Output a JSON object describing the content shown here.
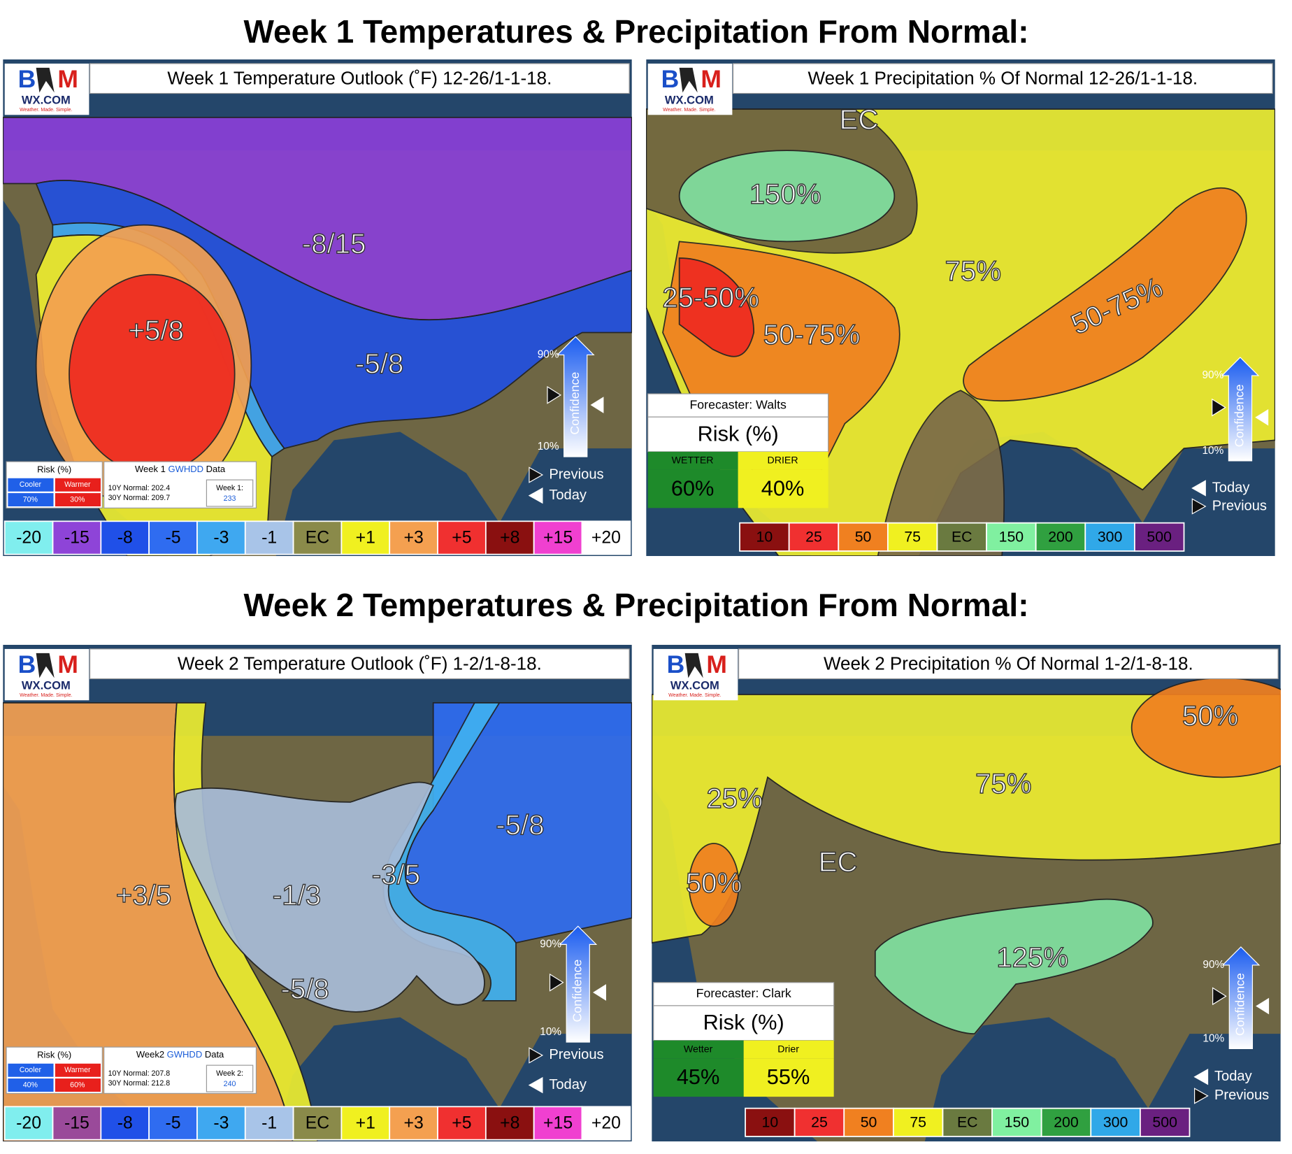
{
  "headings": [
    "Week 1 Temperatures & Precipitation From Normal:",
    "Week 2 Temperatures & Precipitation From Normal:"
  ],
  "panels": [
    {
      "kind": "temp",
      "title": "Week 1 Temperature Outlook (˚F) 12-26/1-1-18.",
      "logo": {
        "left": "B",
        "right": "M",
        "site": "WX.COM",
        "tagline": "Weather. Made. Simple."
      },
      "labels": [
        "-8/15",
        "+5/8",
        "-5/8"
      ],
      "risk": {
        "title": "Risk (%)",
        "cooler": "Cooler",
        "warmer": "Warmer",
        "cooler_value": "70%",
        "warmer_value": "30%"
      },
      "gwhdd": {
        "prefix": "Week 1 ",
        "key": "GWHDD",
        "suffix": " Data",
        "normal_10y": "10Y Normal: 202.4",
        "normal_30y": "30Y Normal: 209.7",
        "week_label": "Week 1:",
        "week_value": "233"
      },
      "confidence": {
        "high": "90%",
        "low": "10%",
        "label": "Confidence"
      },
      "nav": {
        "previous": "Previous",
        "today": "Today"
      },
      "legend": [
        {
          "label": "-20",
          "color": "#80eeee"
        },
        {
          "label": "-15",
          "color": "#8e44d8"
        },
        {
          "label": "-8",
          "color": "#2050e8"
        },
        {
          "label": "-5",
          "color": "#2f6cf0"
        },
        {
          "label": "-3",
          "color": "#3fa8f0"
        },
        {
          "label": "-1",
          "color": "#a8c4e8"
        },
        {
          "label": "EC",
          "color": "#8a8a4a"
        },
        {
          "label": "+1",
          "color": "#f0f020"
        },
        {
          "label": "+3",
          "color": "#f4a050"
        },
        {
          "label": "+5",
          "color": "#f03030"
        },
        {
          "label": "+8",
          "color": "#8a1010"
        },
        {
          "label": "+15",
          "color": "#f040d0"
        },
        {
          "label": "+20",
          "color": "#ffffff"
        }
      ]
    },
    {
      "kind": "precip",
      "title": "Week 1 Precipitation % Of Normal 12-26/1-1-18.",
      "logo": {
        "left": "B",
        "right": "M",
        "site": "WX.COM",
        "tagline": "Weather. Made. Simple."
      },
      "labels": [
        "EC",
        "150%",
        "25-50%",
        "50-75%",
        "75%",
        "50-75%"
      ],
      "risk": {
        "forecaster": "Forecaster: Walts",
        "title": "Risk (%)",
        "wetter": "WETTER",
        "drier": "DRIER",
        "wetter_value": "60%",
        "drier_value": "40%"
      },
      "confidence": {
        "high": "90%",
        "low": "10%",
        "label": "Confidence"
      },
      "nav": {
        "today": "Today",
        "previous": "Previous"
      },
      "legend": [
        {
          "label": "10",
          "color": "#8a1010"
        },
        {
          "label": "25",
          "color": "#f03030"
        },
        {
          "label": "50",
          "color": "#f08020"
        },
        {
          "label": "75",
          "color": "#f0f020"
        },
        {
          "label": "EC",
          "color": "#6a7a40"
        },
        {
          "label": "150",
          "color": "#80f0a0"
        },
        {
          "label": "200",
          "color": "#30a040"
        },
        {
          "label": "300",
          "color": "#30a8e8"
        },
        {
          "label": "500",
          "color": "#6a2080"
        }
      ]
    },
    {
      "kind": "temp",
      "title": "Week 2 Temperature Outlook (˚F) 1-2/1-8-18.",
      "logo": {
        "left": "B",
        "right": "M",
        "site": "WX.COM",
        "tagline": "Weather. Made. Simple."
      },
      "labels": [
        "+3/5",
        "-1/3",
        "-3/5",
        "-5/8",
        "-5/8"
      ],
      "risk": {
        "title": "Risk (%)",
        "cooler": "Cooler",
        "warmer": "Warmer",
        "cooler_value": "40%",
        "warmer_value": "60%"
      },
      "gwhdd": {
        "prefix": "Week2 ",
        "key": "GWHDD",
        "suffix": " Data",
        "normal_10y": "10Y Normal: 207.8",
        "normal_30y": "30Y Normal: 212.8",
        "week_label": "Week 2:",
        "week_value": "240"
      },
      "confidence": {
        "high": "90%",
        "low": "10%",
        "label": "Confidence"
      },
      "nav": {
        "previous": "Previous",
        "today": "Today"
      },
      "legend": [
        {
          "label": "-20",
          "color": "#80eeee"
        },
        {
          "label": "-15",
          "color": "#9a4a9a"
        },
        {
          "label": "-8",
          "color": "#2050e8"
        },
        {
          "label": "-5",
          "color": "#2f6cf0"
        },
        {
          "label": "-3",
          "color": "#3fa8f0"
        },
        {
          "label": "-1",
          "color": "#a8c4e8"
        },
        {
          "label": "EC",
          "color": "#8a8a4a"
        },
        {
          "label": "+1",
          "color": "#f0f020"
        },
        {
          "label": "+3",
          "color": "#f4a050"
        },
        {
          "label": "+5",
          "color": "#f03030"
        },
        {
          "label": "+8",
          "color": "#8a1010"
        },
        {
          "label": "+15",
          "color": "#f040d0"
        },
        {
          "label": "+20",
          "color": "#ffffff"
        }
      ]
    },
    {
      "kind": "precip",
      "title": "Week 2 Precipitation % Of Normal 1-2/1-8-18.",
      "logo": {
        "left": "B",
        "right": "M",
        "site": "WX.COM",
        "tagline": "Weather. Made. Simple."
      },
      "labels": [
        "50%",
        "25%",
        "75%",
        "50%",
        "EC",
        "125%"
      ],
      "risk": {
        "forecaster": "Forecaster: Clark",
        "title": "Risk (%)",
        "wetter": "Wetter",
        "drier": "Drier",
        "wetter_value": "45%",
        "drier_value": "55%"
      },
      "confidence": {
        "high": "90%",
        "low": "10%",
        "label": "Confidence"
      },
      "nav": {
        "today": "Today",
        "previous": "Previous"
      },
      "legend": [
        {
          "label": "10",
          "color": "#8a1010"
        },
        {
          "label": "25",
          "color": "#f03030"
        },
        {
          "label": "50",
          "color": "#f08020"
        },
        {
          "label": "75",
          "color": "#f0f020"
        },
        {
          "label": "EC",
          "color": "#6a7a40"
        },
        {
          "label": "150",
          "color": "#80f0a0"
        },
        {
          "label": "200",
          "color": "#30a040"
        },
        {
          "label": "300",
          "color": "#30a8e8"
        },
        {
          "label": "500",
          "color": "#6a2080"
        }
      ]
    }
  ]
}
